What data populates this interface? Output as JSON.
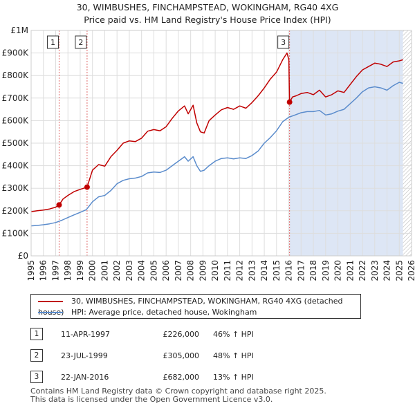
{
  "title_line1": "30, WIMBUSHES, FINCHAMPSTEAD, WOKINGHAM, RG40 4XG",
  "title_line2": "Price paid vs. HM Land Registry's House Price Index (HPI)",
  "colors": {
    "property": "#c00000",
    "hpi": "#5b8ccc",
    "shade": "#dde6f5",
    "grid": "#dddddd",
    "marker_line": "#e06666"
  },
  "chart_data": {
    "type": "line",
    "title": "30, WIMBUSHES, FINCHAMPSTEAD, WOKINGHAM, RG40 4XG",
    "subtitle": "Price paid vs. HM Land Registry's House Price Index (HPI)",
    "xlabel": "",
    "ylabel": "",
    "xlim": [
      1995,
      2026
    ],
    "ylim": [
      0,
      1000000
    ],
    "x_ticks": [
      "1995",
      "1996",
      "1997",
      "1998",
      "1999",
      "2000",
      "2001",
      "2002",
      "2003",
      "2004",
      "2005",
      "2006",
      "2007",
      "2008",
      "2009",
      "2010",
      "2011",
      "2012",
      "2013",
      "2014",
      "2015",
      "2016",
      "2017",
      "2018",
      "2019",
      "2020",
      "2021",
      "2022",
      "2023",
      "2024",
      "2025",
      "2026"
    ],
    "y_ticks": [
      {
        "value": 0,
        "label": "£0"
      },
      {
        "value": 100000,
        "label": "£100K"
      },
      {
        "value": 200000,
        "label": "£200K"
      },
      {
        "value": 300000,
        "label": "£300K"
      },
      {
        "value": 400000,
        "label": "£400K"
      },
      {
        "value": 500000,
        "label": "£500K"
      },
      {
        "value": 600000,
        "label": "£600K"
      },
      {
        "value": 700000,
        "label": "£700K"
      },
      {
        "value": 800000,
        "label": "£800K"
      },
      {
        "value": 900000,
        "label": "£900K"
      },
      {
        "value": 1000000,
        "label": "£1M"
      }
    ],
    "grid": true,
    "series": [
      {
        "name": "30, WIMBUSHES, FINCHAMPSTEAD, WOKINGHAM, RG40 4XG (detached house)",
        "x": [
          1995.0,
          1995.5,
          1996.0,
          1996.5,
          1997.0,
          1997.28,
          1997.6,
          1998.0,
          1998.5,
          1999.0,
          1999.56,
          2000.0,
          2000.5,
          2001.0,
          2001.5,
          2002.0,
          2002.5,
          2003.0,
          2003.5,
          2004.0,
          2004.5,
          2005.0,
          2005.5,
          2006.0,
          2006.5,
          2007.0,
          2007.5,
          2007.8,
          2008.2,
          2008.5,
          2008.8,
          2009.1,
          2009.5,
          2010.0,
          2010.5,
          2011.0,
          2011.5,
          2012.0,
          2012.5,
          2013.0,
          2013.5,
          2014.0,
          2014.5,
          2015.0,
          2015.5,
          2015.85,
          2016.0,
          2016.06,
          2016.3,
          2016.6,
          2017.0,
          2017.5,
          2018.0,
          2018.5,
          2019.0,
          2019.5,
          2020.0,
          2020.5,
          2021.0,
          2021.5,
          2022.0,
          2022.5,
          2023.0,
          2023.5,
          2024.0,
          2024.5,
          2025.0,
          2025.3
        ],
        "values": [
          196000,
          200000,
          203000,
          208000,
          216000,
          226000,
          252000,
          268000,
          285000,
          295000,
          305000,
          380000,
          405000,
          398000,
          440000,
          468000,
          500000,
          510000,
          507000,
          522000,
          553000,
          560000,
          555000,
          573000,
          610000,
          643000,
          665000,
          630000,
          668000,
          590000,
          550000,
          545000,
          600000,
          625000,
          648000,
          658000,
          650000,
          665000,
          655000,
          680000,
          710000,
          745000,
          785000,
          815000,
          870000,
          900000,
          870000,
          682000,
          705000,
          710000,
          720000,
          725000,
          715000,
          735000,
          705000,
          715000,
          732000,
          725000,
          760000,
          795000,
          825000,
          840000,
          855000,
          850000,
          840000,
          860000,
          865000,
          870000
        ]
      },
      {
        "name": "HPI: Average price, detached house, Wokingham",
        "x": [
          1995.0,
          1995.5,
          1996.0,
          1996.5,
          1997.0,
          1997.5,
          1998.0,
          1998.5,
          1999.0,
          1999.5,
          2000.0,
          2000.5,
          2001.0,
          2001.5,
          2002.0,
          2002.5,
          2003.0,
          2003.5,
          2004.0,
          2004.5,
          2005.0,
          2005.5,
          2006.0,
          2006.5,
          2007.0,
          2007.5,
          2007.8,
          2008.2,
          2008.5,
          2008.8,
          2009.1,
          2009.5,
          2010.0,
          2010.5,
          2011.0,
          2011.5,
          2012.0,
          2012.5,
          2013.0,
          2013.5,
          2014.0,
          2014.5,
          2015.0,
          2015.5,
          2016.0,
          2016.5,
          2017.0,
          2017.5,
          2018.0,
          2018.5,
          2019.0,
          2019.5,
          2020.0,
          2020.5,
          2021.0,
          2021.5,
          2022.0,
          2022.5,
          2023.0,
          2023.5,
          2024.0,
          2024.5,
          2025.0,
          2025.3
        ],
        "values": [
          133000,
          135000,
          138000,
          142000,
          148000,
          158000,
          170000,
          182000,
          193000,
          205000,
          240000,
          262000,
          268000,
          290000,
          320000,
          335000,
          342000,
          345000,
          352000,
          368000,
          372000,
          370000,
          380000,
          400000,
          420000,
          440000,
          420000,
          440000,
          400000,
          375000,
          380000,
          400000,
          420000,
          432000,
          435000,
          430000,
          435000,
          432000,
          445000,
          465000,
          500000,
          525000,
          555000,
          595000,
          615000,
          625000,
          635000,
          640000,
          640000,
          645000,
          625000,
          630000,
          642000,
          650000,
          675000,
          700000,
          728000,
          745000,
          750000,
          745000,
          735000,
          755000,
          770000,
          765000
        ]
      }
    ],
    "transactions": [
      {
        "num": "1",
        "x": 1997.28,
        "value": 226000,
        "date": "11-APR-1997",
        "price": "£226,000",
        "hpi": "46% ↑ HPI"
      },
      {
        "num": "2",
        "x": 1999.56,
        "value": 305000,
        "date": "23-JUL-1999",
        "price": "£305,000",
        "hpi": "48% ↑ HPI"
      },
      {
        "num": "3",
        "x": 2016.06,
        "value": 682000,
        "date": "22-JAN-2016",
        "price": "£682,000",
        "hpi": "13% ↑ HPI"
      }
    ],
    "legend": [
      "30, WIMBUSHES, FINCHAMPSTEAD, WOKINGHAM, RG40 4XG (detached house)",
      "HPI: Average price, detached house, Wokingham"
    ]
  },
  "table": [
    {
      "num": "1",
      "date": "11-APR-1997",
      "price": "£226,000",
      "hpi": "46% ↑ HPI"
    },
    {
      "num": "2",
      "date": "23-JUL-1999",
      "price": "£305,000",
      "hpi": "48% ↑ HPI"
    },
    {
      "num": "3",
      "date": "22-JAN-2016",
      "price": "£682,000",
      "hpi": "13% ↑ HPI"
    }
  ],
  "footer_line1": "Contains HM Land Registry data © Crown copyright and database right 2025.",
  "footer_line2": "This data is licensed under the Open Government Licence v3.0."
}
